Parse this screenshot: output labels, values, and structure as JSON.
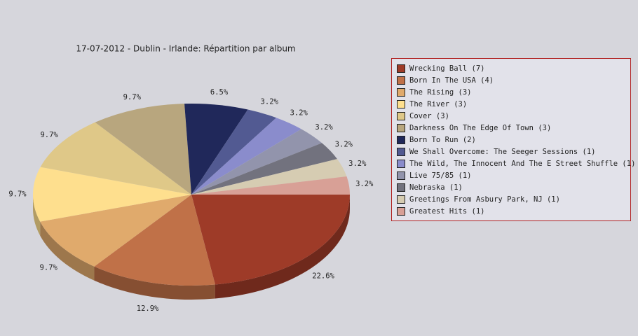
{
  "chart_data": {
    "type": "pie",
    "title": "17-07-2012 - Dublin - Irlande:  Répartition par album",
    "categories": [
      "Wrecking Ball (7)",
      "Born In The USA (4)",
      "The Rising (3)",
      "The River (3)",
      "Cover (3)",
      "Darkness On The Edge Of Town (3)",
      "Born To Run (2)",
      "We Shall Overcome: The Seeger Sessions (1)",
      "The Wild, The Innocent And The E Street Shuffle (1)",
      "Live 75/85 (1)",
      "Nebraska (1)",
      "Greetings From Asbury Park, NJ (1)",
      "Greatest Hits (1)"
    ],
    "values": [
      22.6,
      12.9,
      9.7,
      9.7,
      9.7,
      9.7,
      6.5,
      3.2,
      3.2,
      3.2,
      3.2,
      3.2,
      3.2
    ],
    "value_labels": [
      "22.6%",
      "12.9%",
      "9.7%",
      "9.7%",
      "9.7%",
      "9.7%",
      "6.5%",
      "3.2%",
      "3.2%",
      "3.2%",
      "3.2%",
      "3.2%",
      "3.2%"
    ],
    "colors": [
      "#9e3b28",
      "#c07148",
      "#e0aa6c",
      "#fedf8e",
      "#dfc888",
      "#b8a67e",
      "#20285a",
      "#525a92",
      "#8a8ccc",
      "#9294ac",
      "#72727e",
      "#d6ccb2",
      "#d8a096"
    ]
  }
}
